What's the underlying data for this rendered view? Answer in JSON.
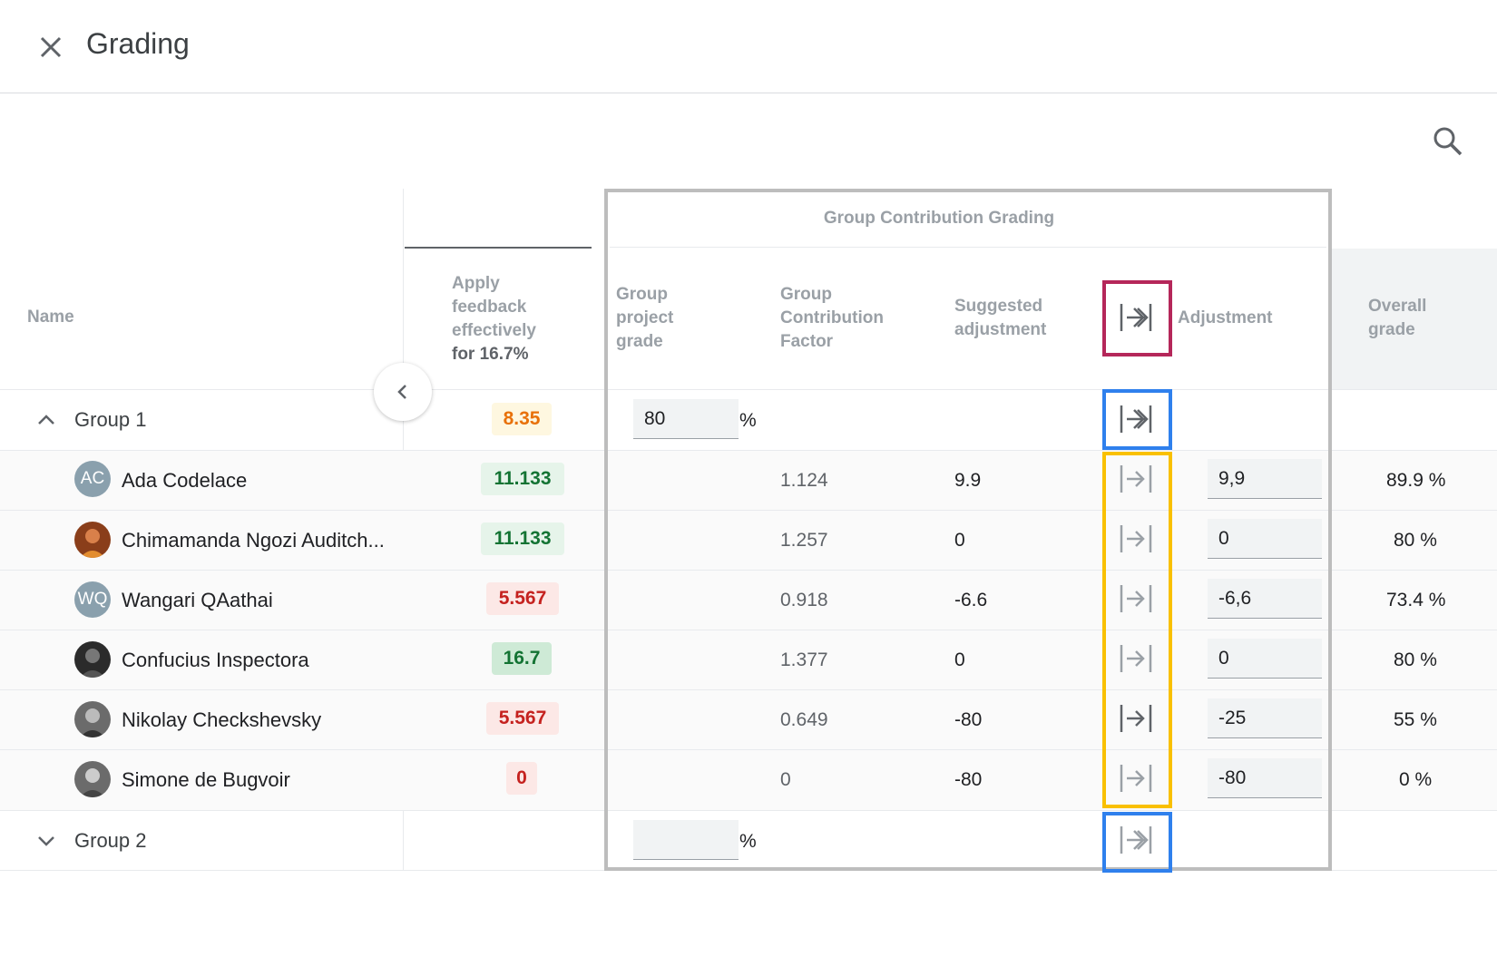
{
  "header": {
    "title": "Grading"
  },
  "columns": {
    "name": "Name",
    "assignment_line1": "Apply",
    "assignment_line2": "feedback",
    "assignment_line3": "effectively",
    "assignment_weight": "for 16.7%",
    "group_section": "Group Contribution Grading",
    "gpg_line1": "Group",
    "gpg_line2": "project",
    "gpg_line3": "grade",
    "gcf_line1": "Group",
    "gcf_line2": "Contribution",
    "gcf_line3": "Factor",
    "sugg_line1": "Suggested",
    "sugg_line2": "adjustment",
    "adjustment": "Adjustment",
    "overall_line1": "Overall",
    "overall_line2": "grade"
  },
  "groups": [
    {
      "name": "Group 1",
      "score": "8.35",
      "project_grade": "80",
      "pct": "%"
    },
    {
      "name": "Group 2",
      "score": "",
      "project_grade": "",
      "pct": "%"
    }
  ],
  "students": [
    {
      "name": "Ada Codelace",
      "initials": "AC",
      "score": "11.133",
      "factor": "1.124",
      "suggested": "9.9",
      "adjustment": "9,9",
      "overall": "89.9 %"
    },
    {
      "name": "Chimamanda Ngozi Auditch...",
      "initials": "",
      "score": "11.133",
      "factor": "1.257",
      "suggested": "0",
      "adjustment": "0",
      "overall": "80 %"
    },
    {
      "name": "Wangari QAathai",
      "initials": "WQ",
      "score": "5.567",
      "factor": "0.918",
      "suggested": "-6.6",
      "adjustment": "-6,6",
      "overall": "73.4 %"
    },
    {
      "name": "Confucius Inspectora",
      "initials": "",
      "score": "16.7",
      "factor": "1.377",
      "suggested": "0",
      "adjustment": "0",
      "overall": "80 %"
    },
    {
      "name": "Nikolay Checkshevsky",
      "initials": "",
      "score": "5.567",
      "factor": "0.649",
      "suggested": "-80",
      "adjustment": "-25",
      "overall": "55 %"
    },
    {
      "name": "Simone de Bugvoir",
      "initials": "",
      "score": "0",
      "factor": "0",
      "suggested": "-80",
      "adjustment": "-80",
      "overall": "0 %"
    }
  ],
  "colors": {
    "frame_gray": "#bdbdbd",
    "highlight_magenta": "#b5275a",
    "highlight_blue": "#2f80ed",
    "highlight_yellow": "#f9c000"
  },
  "icons": [
    "close-icon",
    "search-icon",
    "chevron-left-icon",
    "chevron-up-icon",
    "chevron-down-icon",
    "apply-all-icon",
    "apply-icon"
  ]
}
